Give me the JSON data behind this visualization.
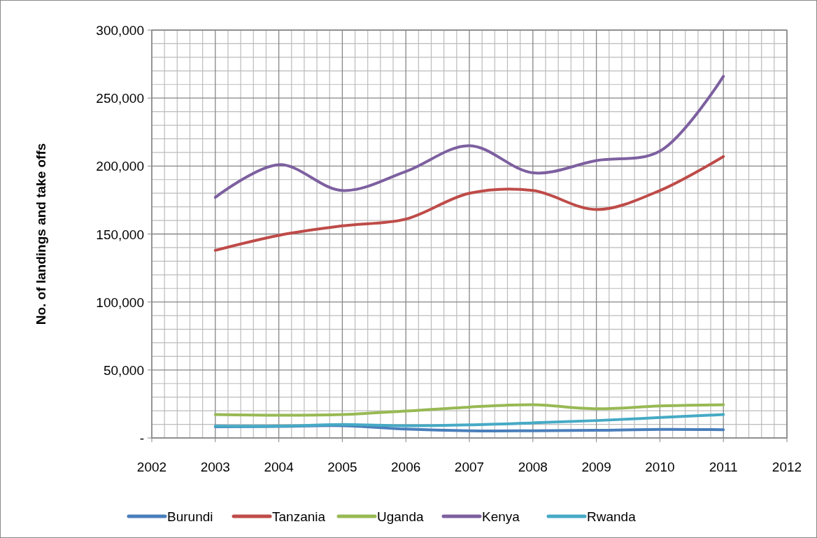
{
  "chart_data": {
    "type": "line",
    "ylabel": "No. of landings and take offs",
    "x": [
      2003,
      2004,
      2005,
      2006,
      2007,
      2008,
      2009,
      2010,
      2011
    ],
    "series": [
      {
        "name": "Burundi",
        "color": "#4a7ebb",
        "values": [
          8200,
          8500,
          9000,
          6500,
          5300,
          5300,
          5600,
          6300,
          6100
        ]
      },
      {
        "name": "Tanzania",
        "color": "#be4b48",
        "values": [
          138000,
          149000,
          156000,
          161000,
          180000,
          182000,
          168000,
          182000,
          207000
        ]
      },
      {
        "name": "Uganda",
        "color": "#98b954",
        "values": [
          17200,
          16700,
          17200,
          19800,
          22700,
          24400,
          21500,
          23500,
          24400
        ]
      },
      {
        "name": "Kenya",
        "color": "#7d60a0",
        "values": [
          177000,
          201000,
          182000,
          196000,
          215000,
          195000,
          204000,
          211000,
          266000
        ]
      },
      {
        "name": "Rwanda",
        "color": "#46aac5",
        "values": [
          8700,
          8700,
          9900,
          9000,
          9600,
          11100,
          12800,
          15000,
          17200
        ]
      }
    ],
    "xlim": [
      2002,
      2012
    ],
    "xticks": [
      2002,
      2003,
      2004,
      2005,
      2006,
      2007,
      2008,
      2009,
      2010,
      2011,
      2012
    ],
    "ylim": [
      0,
      300000
    ],
    "yticks": [
      {
        "value": 0,
        "label": "-"
      },
      {
        "value": 50000,
        "label": "50,000"
      },
      {
        "value": 100000,
        "label": "100,000"
      },
      {
        "value": 150000,
        "label": "150,000"
      },
      {
        "value": 200000,
        "label": "200,000"
      },
      {
        "value": 250000,
        "label": "250,000"
      },
      {
        "value": 300000,
        "label": "300,000"
      }
    ],
    "grid": true,
    "legend": "bottom",
    "marker": "none",
    "line_style": "solid"
  }
}
